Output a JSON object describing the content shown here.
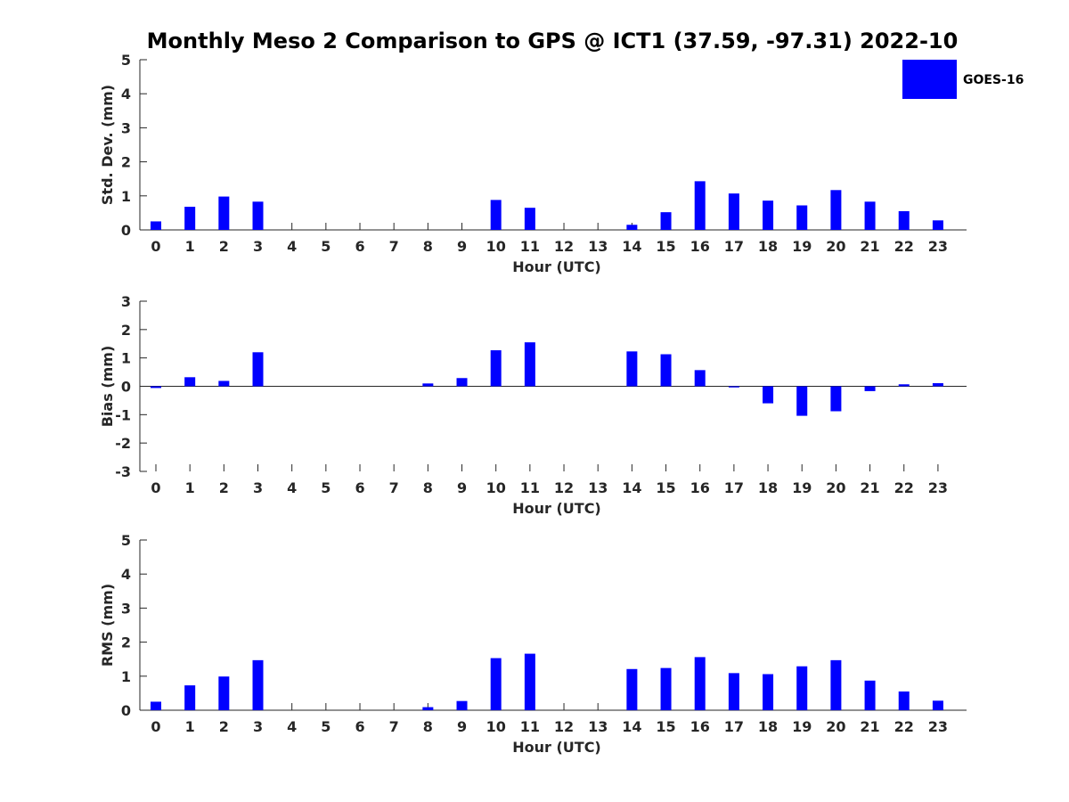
{
  "title": "Monthly Meso 2 Comparison to GPS @ ICT1 (37.59, -97.31) 2022-10",
  "legend": {
    "label": "GOES-16",
    "color": "#0000ff",
    "placement": "top-right"
  },
  "chart_data": [
    {
      "type": "bar",
      "xlabel": "Hour (UTC)",
      "ylabel": "Std. Dev. (mm)",
      "ylim": [
        0,
        5
      ],
      "yticks": [
        "0",
        "1",
        "2",
        "3",
        "4",
        "5"
      ],
      "categories": [
        "0",
        "1",
        "2",
        "3",
        "4",
        "5",
        "6",
        "7",
        "8",
        "9",
        "10",
        "11",
        "12",
        "13",
        "14",
        "15",
        "16",
        "17",
        "18",
        "19",
        "20",
        "21",
        "22",
        "23"
      ],
      "series": [
        {
          "name": "GOES-16",
          "values": [
            0.25,
            0.68,
            0.98,
            0.83,
            0,
            0,
            0,
            0,
            0,
            0,
            0.88,
            0.65,
            0,
            0,
            0.15,
            0.52,
            1.43,
            1.07,
            0.86,
            0.72,
            1.17,
            0.83,
            0.55,
            0.28
          ]
        }
      ]
    },
    {
      "type": "bar",
      "xlabel": "Hour (UTC)",
      "ylabel": "Bias (mm)",
      "ylim": [
        -3,
        3
      ],
      "yticks": [
        "-3",
        "-2",
        "-1",
        "0",
        "1",
        "2",
        "3"
      ],
      "categories": [
        "0",
        "1",
        "2",
        "3",
        "4",
        "5",
        "6",
        "7",
        "8",
        "9",
        "10",
        "11",
        "12",
        "13",
        "14",
        "15",
        "16",
        "17",
        "18",
        "19",
        "20",
        "21",
        "22",
        "23"
      ],
      "series": [
        {
          "name": "GOES-16",
          "values": [
            -0.06,
            0.32,
            0.19,
            1.2,
            0,
            0,
            0,
            0,
            0.1,
            0.29,
            1.27,
            1.55,
            0,
            0,
            1.23,
            1.13,
            0.57,
            -0.04,
            -0.6,
            -1.04,
            -0.88,
            -0.17,
            0.07,
            0.11
          ]
        }
      ]
    },
    {
      "type": "bar",
      "xlabel": "Hour (UTC)",
      "ylabel": "RMS (mm)",
      "ylim": [
        0,
        5
      ],
      "yticks": [
        "0",
        "1",
        "2",
        "3",
        "4",
        "5"
      ],
      "categories": [
        "0",
        "1",
        "2",
        "3",
        "4",
        "5",
        "6",
        "7",
        "8",
        "9",
        "10",
        "11",
        "12",
        "13",
        "14",
        "15",
        "16",
        "17",
        "18",
        "19",
        "20",
        "21",
        "22",
        "23"
      ],
      "series": [
        {
          "name": "GOES-16",
          "values": [
            0.25,
            0.73,
            0.99,
            1.47,
            0,
            0,
            0,
            0,
            0.09,
            0.27,
            1.53,
            1.66,
            0,
            0,
            1.21,
            1.24,
            1.56,
            1.09,
            1.06,
            1.29,
            1.47,
            0.87,
            0.55,
            0.28
          ]
        }
      ]
    }
  ]
}
